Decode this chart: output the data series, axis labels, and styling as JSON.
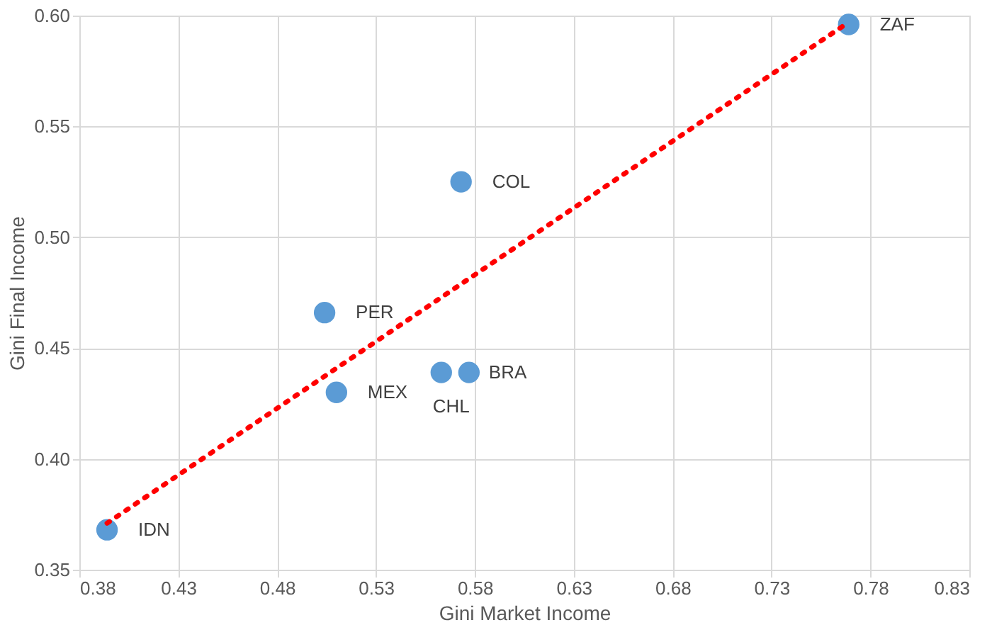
{
  "chart_data": {
    "type": "scatter",
    "xlabel": "Gini Market Income",
    "ylabel": "Gini Final Income",
    "xlim": [
      0.38,
      0.83
    ],
    "xticks": [
      0.38,
      0.43,
      0.48,
      0.53,
      0.58,
      0.63,
      0.68,
      0.73,
      0.78,
      0.83
    ],
    "ylim": [
      0.35,
      0.6
    ],
    "yticks": [
      0.35,
      {
        "value": 0.4,
        "label": "0.40"
      },
      0.45,
      {
        "value": 0.5,
        "label": "0.50"
      },
      0.55,
      {
        "value": 0.6,
        "label": "0.60"
      }
    ],
    "grid": true,
    "series": [
      {
        "marker": "circle",
        "color": "#5b9bd5",
        "x": [
          0.769,
          0.573,
          0.504,
          0.51,
          0.563,
          0.577,
          0.394
        ],
        "values": [
          0.596,
          0.525,
          0.466,
          0.43,
          0.439,
          0.439,
          0.368
        ]
      },
      {
        "type": "line",
        "color": "#ff0000",
        "line_style": "dotted",
        "x": [
          0.394,
          0.769
        ],
        "values": [
          0.371,
          0.597
        ]
      }
    ],
    "annotations": [
      {
        "text": "ZAF",
        "x": 0.769,
        "y": 0.596
      },
      {
        "text": "COL",
        "x": 0.573,
        "y": 0.525
      },
      {
        "text": "PER",
        "x": 0.504,
        "y": 0.466
      },
      {
        "text": "MEX",
        "x": 0.51,
        "y": 0.43
      },
      {
        "text": "CHL",
        "x": 0.563,
        "y": 0.439
      },
      {
        "text": "BRA",
        "x": 0.577,
        "y": 0.439
      },
      {
        "text": "IDN",
        "x": 0.394,
        "y": 0.368
      }
    ]
  }
}
